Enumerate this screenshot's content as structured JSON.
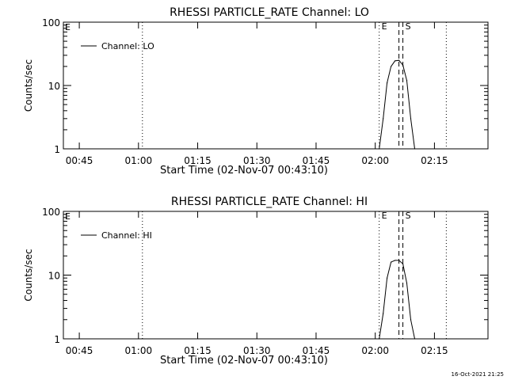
{
  "timestamp": "16-Oct-2021 21:25",
  "chart_data": [
    {
      "type": "line",
      "title": "RHESSI PARTICLE_RATE Channel: LO",
      "xlabel": "Start Time (02-Nov-07 00:43:10)",
      "ylabel": "Counts/sec",
      "yscale": "log",
      "ylim": [
        1,
        100
      ],
      "xlim_minutes_after_start": [
        -2.2,
        105.4
      ],
      "x_ticks": [
        "00:45",
        "01:00",
        "01:15",
        "01:30",
        "01:45",
        "02:00",
        "02:15"
      ],
      "y_ticks": [
        "1",
        "10",
        "100"
      ],
      "legend": {
        "label": "Channel: LO",
        "placement": "top-left"
      },
      "markers": [
        {
          "type": "dotted",
          "time": "01:01"
        },
        {
          "type": "dotted",
          "time": "02:01",
          "label": "E"
        },
        {
          "type": "dashed",
          "time": "02:06"
        },
        {
          "type": "dashed",
          "time": "02:07",
          "label": "S"
        },
        {
          "type": "dotted",
          "time": "02:18"
        }
      ],
      "corner_label": "E",
      "series": [
        {
          "name": "Channel: LO",
          "x": [
            "02:01",
            "02:02",
            "02:03",
            "02:04",
            "02:05",
            "02:06",
            "02:07",
            "02:08",
            "02:09",
            "02:10"
          ],
          "values": [
            1.0,
            3.0,
            11.0,
            20.0,
            24.5,
            25.0,
            21.0,
            12.0,
            3.0,
            1.0
          ]
        }
      ]
    },
    {
      "type": "line",
      "title": "RHESSI PARTICLE_RATE Channel: HI",
      "xlabel": "Start Time (02-Nov-07 00:43:10)",
      "ylabel": "Counts/sec",
      "yscale": "log",
      "ylim": [
        1,
        100
      ],
      "xlim_minutes_after_start": [
        -2.2,
        105.4
      ],
      "x_ticks": [
        "00:45",
        "01:00",
        "01:15",
        "01:30",
        "01:45",
        "02:00",
        "02:15"
      ],
      "y_ticks": [
        "1",
        "10",
        "100"
      ],
      "legend": {
        "label": "Channel: HI",
        "placement": "top-left"
      },
      "markers": [
        {
          "type": "dotted",
          "time": "01:01"
        },
        {
          "type": "dotted",
          "time": "02:01",
          "label": "E"
        },
        {
          "type": "dashed",
          "time": "02:06"
        },
        {
          "type": "dashed",
          "time": "02:07",
          "label": "S"
        },
        {
          "type": "dotted",
          "time": "02:18"
        }
      ],
      "corner_label": "E",
      "series": [
        {
          "name": "Channel: HI",
          "x": [
            "02:01",
            "02:02",
            "02:03",
            "02:04",
            "02:05",
            "02:06",
            "02:07",
            "02:08",
            "02:09",
            "02:10"
          ],
          "values": [
            1.0,
            2.5,
            9.0,
            16.0,
            17.0,
            17.0,
            15.0,
            7.5,
            2.0,
            1.0
          ]
        }
      ]
    }
  ]
}
